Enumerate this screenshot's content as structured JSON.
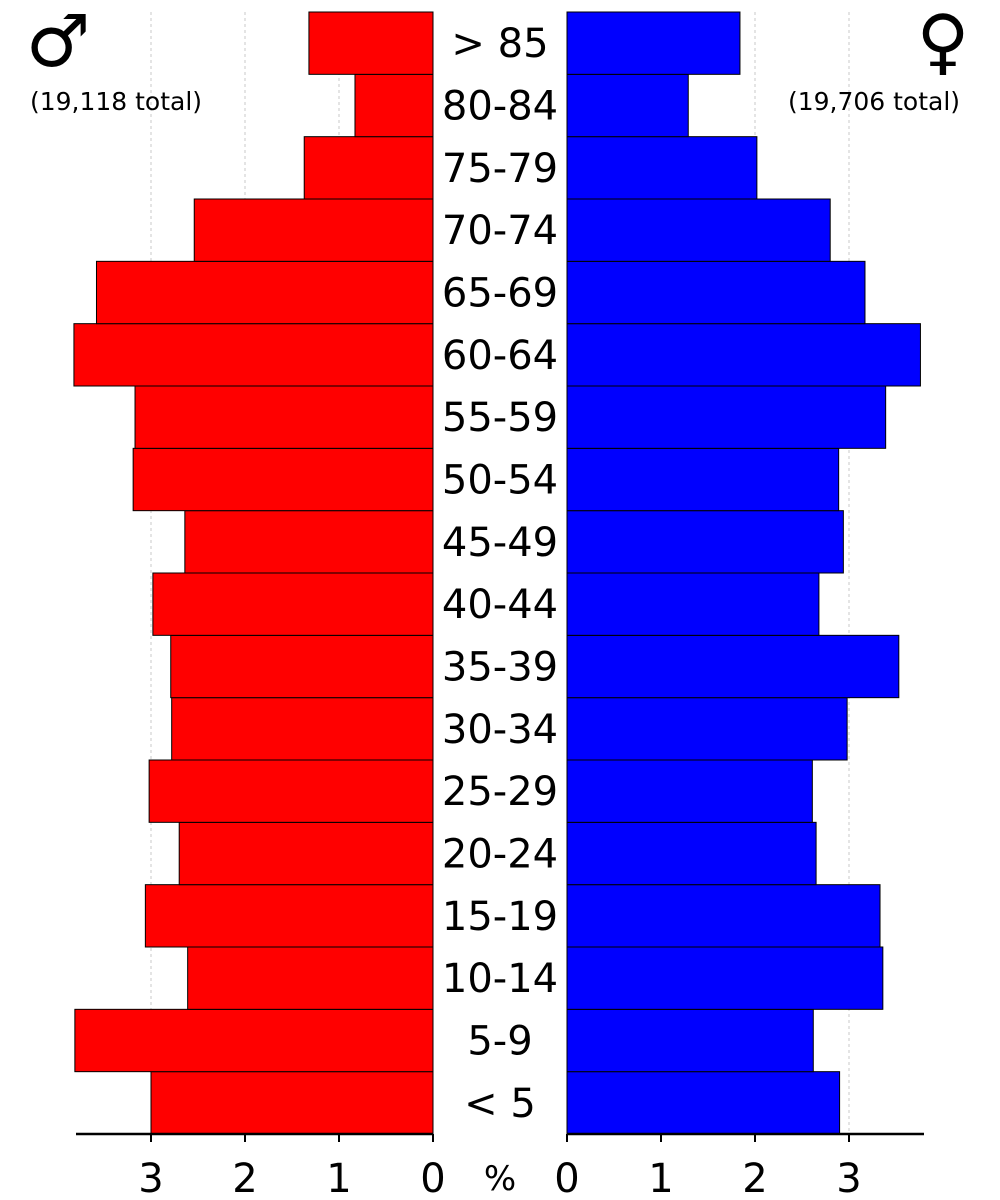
{
  "chart_data": {
    "type": "bar",
    "orientation": "horizontal-pyramid",
    "unit_label": "%",
    "categories": [
      "< 5",
      "5-9",
      "10-14",
      "15-19",
      "20-24",
      "25-29",
      "30-34",
      "35-39",
      "40-44",
      "45-49",
      "50-54",
      "55-59",
      "60-64",
      "65-69",
      "70-74",
      "75-79",
      "80-84",
      "> 85"
    ],
    "series": [
      {
        "side": "left",
        "symbol": "♂",
        "total_label": "(19,118 total)",
        "color": "#ff0000",
        "values": [
          3.0,
          3.81,
          2.61,
          3.06,
          2.7,
          3.02,
          2.78,
          2.79,
          2.98,
          2.64,
          3.19,
          3.17,
          3.82,
          3.58,
          2.54,
          1.37,
          0.83,
          1.32
        ]
      },
      {
        "side": "right",
        "symbol": "♀",
        "total_label": "(19,706 total)",
        "color": "#0000ff",
        "values": [
          2.9,
          2.62,
          3.36,
          3.33,
          2.65,
          2.61,
          2.98,
          3.53,
          2.68,
          2.94,
          2.89,
          3.39,
          3.76,
          3.17,
          2.8,
          2.02,
          1.29,
          1.84
        ]
      }
    ],
    "x_ticks": [
      0,
      1,
      2,
      3
    ],
    "xlim": [
      0,
      3.85
    ],
    "grid": true
  }
}
